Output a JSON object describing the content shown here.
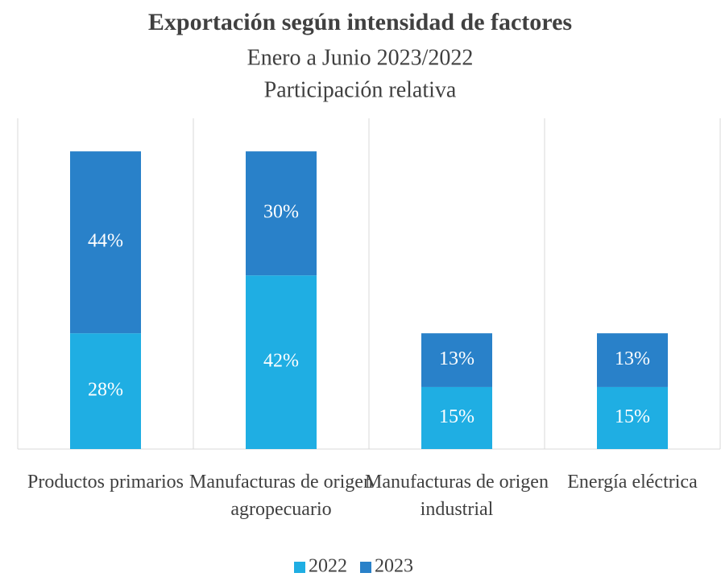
{
  "chart_data": {
    "type": "stacked_bar",
    "title": "Exportación según intensidad de factores",
    "subtitle": [
      "Enero a Junio 2023/2022",
      "Participación relativa"
    ],
    "categories": [
      "Productos primarios",
      "Manufacturas de origen agropecuario",
      "Manufacturas de origen industrial",
      "Energía eléctrica"
    ],
    "series": [
      {
        "name": "2022",
        "color": "#1faee3",
        "values": [
          28,
          42,
          15,
          15
        ],
        "value_labels": [
          "28%",
          "42%",
          "15%",
          "15%"
        ]
      },
      {
        "name": "2023",
        "color": "#2981c9",
        "values": [
          44,
          30,
          13,
          13
        ],
        "value_labels": [
          "44%",
          "30%",
          "13%",
          "13%"
        ]
      }
    ],
    "ylim": [
      0,
      80
    ],
    "grid": true,
    "legend": "bottom"
  }
}
